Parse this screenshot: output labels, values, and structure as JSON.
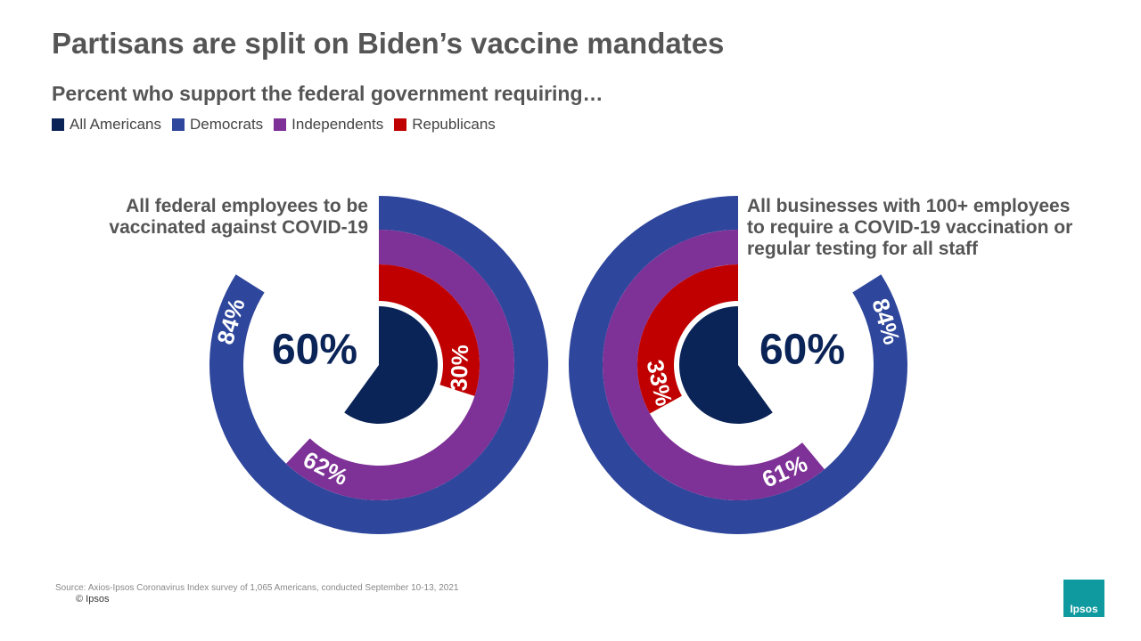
{
  "title": "Partisans are split on Biden’s vaccine mandates",
  "subtitle": "Percent who support the federal government requiring…",
  "source": "Source: Axios-Ipsos Coronavirus Index survey of 1,065 Americans, conducted September 10-13, 2021",
  "copyright": "© Ipsos",
  "logo": "Ipsos",
  "chart_data": [
    {
      "type": "radial_bar",
      "title": "All federal employees to be vaccinated against COVID-19",
      "direction": "clockwise",
      "categories": [
        "All Americans",
        "Democrats",
        "Independents",
        "Republicans"
      ],
      "colors": [
        "#0b2457",
        "#2e469c",
        "#7e3196",
        "#c00000"
      ],
      "values": [
        60,
        84,
        62,
        30
      ],
      "value_labels": [
        "60%",
        "84%",
        "62%",
        "30%"
      ]
    },
    {
      "type": "radial_bar",
      "title": "All businesses with 100+ employees to require a COVID-19 vaccination or regular testing for all staff",
      "direction": "counterclockwise",
      "categories": [
        "All Americans",
        "Democrats",
        "Independents",
        "Republicans"
      ],
      "colors": [
        "#0b2457",
        "#2e469c",
        "#7e3196",
        "#c00000"
      ],
      "values": [
        60,
        84,
        61,
        33
      ],
      "value_labels": [
        "60%",
        "84%",
        "61%",
        "33%"
      ]
    }
  ]
}
